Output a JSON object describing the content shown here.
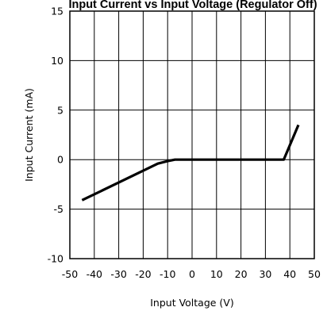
{
  "chart_data": {
    "type": "line",
    "title": "Input Current vs Input Voltage (Regulator Off)",
    "xlabel": "Input Voltage (V)",
    "ylabel": "Input Current (mA)",
    "xlim": [
      -50,
      50
    ],
    "ylim": [
      -10,
      15
    ],
    "xticks": [
      "-50",
      "-40",
      "-30",
      "-20",
      "-10",
      "0",
      "10",
      "20",
      "30",
      "40",
      "50"
    ],
    "yticks": [
      "15",
      "10",
      "5",
      "0",
      "-5",
      "-10"
    ],
    "grid": true,
    "series": [
      {
        "x": [
          -45,
          -14,
          -10,
          -7,
          37.5,
          43.5
        ],
        "y": [
          -4.1,
          -0.4,
          -0.15,
          0,
          0,
          3.5
        ]
      }
    ]
  }
}
